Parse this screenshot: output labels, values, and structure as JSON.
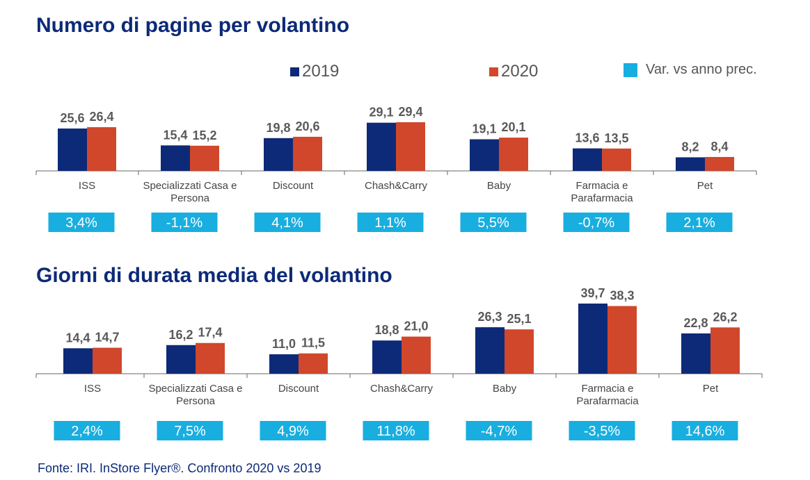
{
  "colors": {
    "y2019": "#0d2a78",
    "y2020": "#d0472c",
    "variation": "#18aee0",
    "axis": "#666666",
    "value_text": "#595959"
  },
  "legend": {
    "series_2019": "2019",
    "series_2020": "2020",
    "variation": "Var. vs anno prec."
  },
  "source": "Fonte: IRI. InStore Flyer®. Confronto 2020 vs 2019",
  "chart_data": [
    {
      "type": "bar",
      "title": "Numero di pagine per volantino",
      "categories": [
        "ISS",
        "Specializzati Casa e Persona",
        "Discount",
        "Chash&Carry",
        "Baby",
        "Farmacia e Parafarmacia",
        "Pet"
      ],
      "category_lines": [
        [
          "ISS"
        ],
        [
          "Specializzati Casa e",
          "Persona"
        ],
        [
          "Discount"
        ],
        [
          "Chash&Carry"
        ],
        [
          "Baby"
        ],
        [
          "Farmacia e",
          "Parafarmacia"
        ],
        [
          "Pet"
        ]
      ],
      "series": [
        {
          "name": "2019",
          "values": [
            25.6,
            15.4,
            19.8,
            29.1,
            19.1,
            13.6,
            8.2
          ],
          "labels": [
            "25,6",
            "15,4",
            "19,8",
            "29,1",
            "19,1",
            "13,6",
            "8,2"
          ]
        },
        {
          "name": "2020",
          "values": [
            26.4,
            15.2,
            20.6,
            29.4,
            20.1,
            13.5,
            8.4
          ],
          "labels": [
            "26,4",
            "15,2",
            "20,6",
            "29,4",
            "20,1",
            "13,5",
            "8,4"
          ]
        }
      ],
      "variation": [
        "3,4%",
        "-1,1%",
        "4,1%",
        "1,1%",
        "5,5%",
        "-0,7%",
        "2,1%"
      ]
    },
    {
      "type": "bar",
      "title": "Giorni di durata media del volantino",
      "categories": [
        "ISS",
        "Specializzati Casa e Persona",
        "Discount",
        "Chash&Carry",
        "Baby",
        "Farmacia e Parafarmacia",
        "Pet"
      ],
      "category_lines": [
        [
          "ISS"
        ],
        [
          "Specializzati Casa e",
          "Persona"
        ],
        [
          "Discount"
        ],
        [
          "Chash&Carry"
        ],
        [
          "Baby"
        ],
        [
          "Farmacia e",
          "Parafarmacia"
        ],
        [
          "Pet"
        ]
      ],
      "series": [
        {
          "name": "2019",
          "values": [
            14.4,
            16.2,
            11.0,
            18.8,
            26.3,
            39.7,
            22.8
          ],
          "labels": [
            "14,4",
            "16,2",
            "11,0",
            "18,8",
            "26,3",
            "39,7",
            "22,8"
          ]
        },
        {
          "name": "2020",
          "values": [
            14.7,
            17.4,
            11.5,
            21.0,
            25.1,
            38.3,
            26.2
          ],
          "labels": [
            "14,7",
            "17,4",
            "11,5",
            "21,0",
            "25,1",
            "38,3",
            "26,2"
          ]
        }
      ],
      "variation": [
        "2,4%",
        "7,5%",
        "4,9%",
        "11,8%",
        "-4,7%",
        "-3,5%",
        "14,6%"
      ]
    }
  ]
}
